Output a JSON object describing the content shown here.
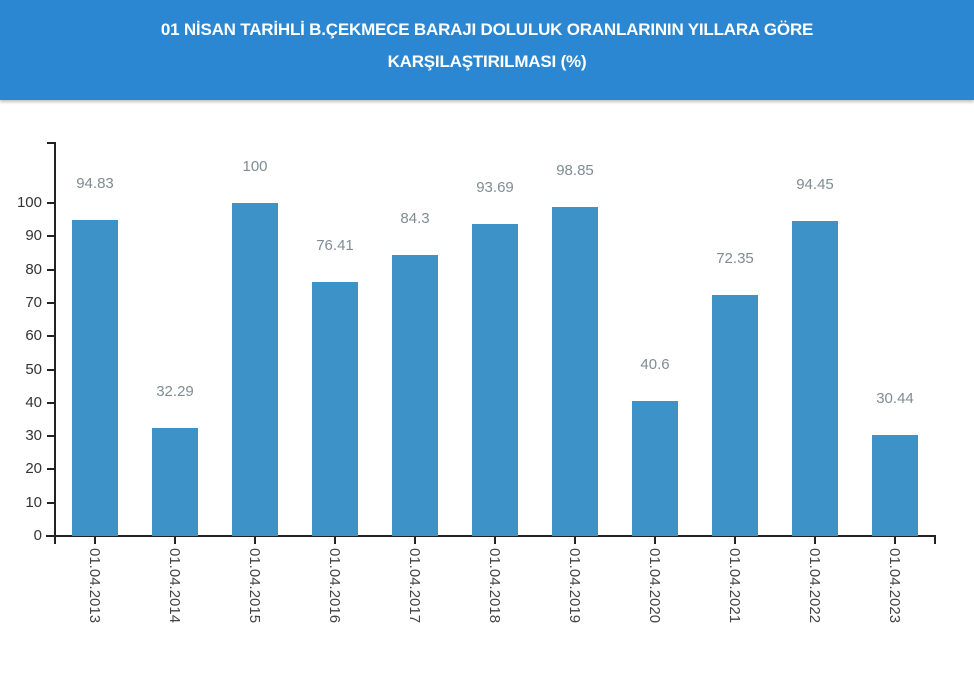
{
  "header": {
    "title_line1": "01 NİSAN TARİHLİ B.ÇEKMECE BARAJI DOLULUK ORANLARININ YILLARA GÖRE",
    "title_line2": "KARŞILAŞTIRILMASI (%)",
    "background_color": "#2b87d1"
  },
  "chart_data": {
    "type": "bar",
    "title": "01 NİSAN TARİHLİ B.ÇEKMECE BARAJI DOLULUK ORANLARININ YILLARA GÖRE KARŞILAŞTIRILMASI (%)",
    "categories": [
      "01.04.2013",
      "01.04.2014",
      "01.04.2015",
      "01.04.2016",
      "01.04.2017",
      "01.04.2018",
      "01.04.2019",
      "01.04.2020",
      "01.04.2021",
      "01.04.2022",
      "01.04.2023"
    ],
    "values": [
      94.83,
      32.29,
      100,
      76.41,
      84.3,
      93.69,
      98.85,
      40.6,
      72.35,
      94.45,
      30.44
    ],
    "value_labels": [
      "94.83",
      "32.29",
      "100",
      "76.41",
      "84.3",
      "93.69",
      "98.85",
      "40.6",
      "72.35",
      "94.45",
      "30.44"
    ],
    "xlabel": "",
    "ylabel": "",
    "ylim": [
      0,
      100
    ],
    "yticks": [
      "0",
      "10",
      "20",
      "30",
      "40",
      "50",
      "60",
      "70",
      "80",
      "90",
      "100"
    ],
    "grid": false,
    "legend": null,
    "bar_color": "#3d93c8",
    "label_color": "#7e8c93"
  }
}
